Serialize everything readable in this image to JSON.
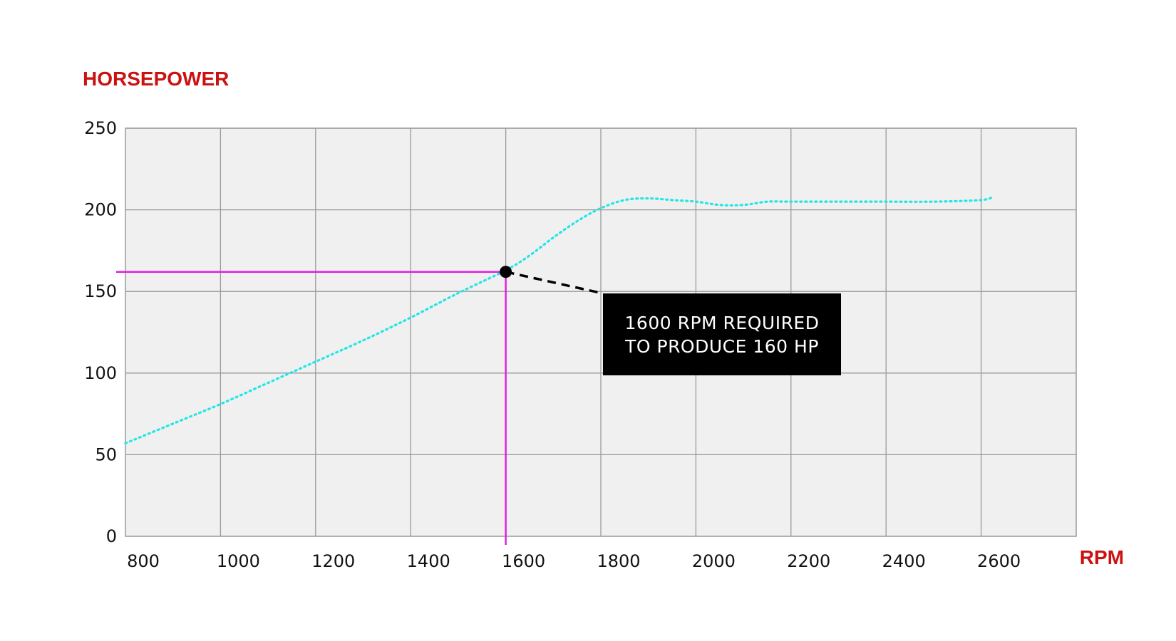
{
  "chart_data": {
    "type": "line",
    "ylabel": "HORSEPOWER",
    "xlabel": "RPM",
    "xlim": [
      800,
      2800
    ],
    "ylim": [
      0,
      250
    ],
    "x_ticks": [
      800,
      1000,
      1200,
      1400,
      1600,
      1800,
      2000,
      2200,
      2400,
      2600
    ],
    "y_ticks": [
      0,
      50,
      100,
      150,
      200,
      250
    ],
    "grid": true,
    "series": [
      {
        "x": [
          800,
          900,
          1000,
          1100,
          1200,
          1300,
          1400,
          1500,
          1600,
          1650,
          1700,
          1750,
          1800,
          1850,
          1900,
          1950,
          2000,
          2050,
          2100,
          2150,
          2200,
          2300,
          2400,
          2500,
          2600,
          2625
        ],
        "y": [
          57,
          69,
          81,
          94,
          107,
          120,
          134,
          149,
          163,
          172,
          183,
          193,
          201,
          206,
          207,
          206,
          205,
          203,
          203,
          205,
          205,
          205,
          205,
          205,
          206,
          208
        ]
      }
    ],
    "annotation": {
      "x": 1600,
      "y": 162,
      "lines": [
        "1600 RPM REQUIRED",
        "TO PRODUCE 160 HP"
      ]
    },
    "colors": {
      "series": "#22e6e6",
      "guide": "#e020e0",
      "axis_title": "#cc1111",
      "plot_bg": "#f0f0f0",
      "grid": "#9a9a9a",
      "callout_bg": "#000000"
    }
  }
}
